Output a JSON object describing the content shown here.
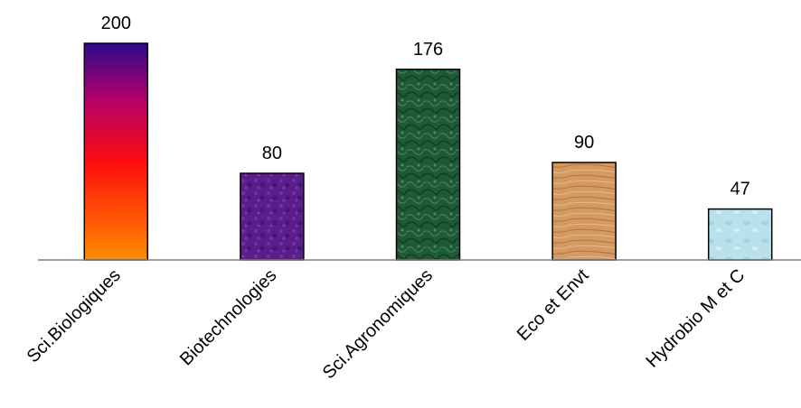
{
  "chart_data": {
    "type": "bar",
    "categories": [
      "Sci.Biologiques",
      "Biotechnologies",
      "Sci.Agronomiques",
      "Eco et Envt",
      "Hydrobio M et C"
    ],
    "values": [
      200,
      80,
      176,
      90,
      47
    ],
    "title": "",
    "xlabel": "",
    "ylabel": "",
    "ylim": [
      0,
      200
    ],
    "grid": false,
    "legend": "none",
    "data_labels": true,
    "bar_fills": [
      "gradient-orange-red-purple",
      "purple-texture",
      "green-marble-texture",
      "wood-texture",
      "light-blue-texture"
    ]
  },
  "colors": {
    "axis": "#808080",
    "bar_outline": "#000000",
    "sci_bio_gradient": [
      "#2a0a8c",
      "#b0006e",
      "#ff0d0d",
      "#ff8c00"
    ],
    "biotech": "#5a1d8a",
    "sci_agro": "#1e5a36",
    "eco_envt": "#d39a62",
    "hydrobio": "#b9e1ec"
  }
}
